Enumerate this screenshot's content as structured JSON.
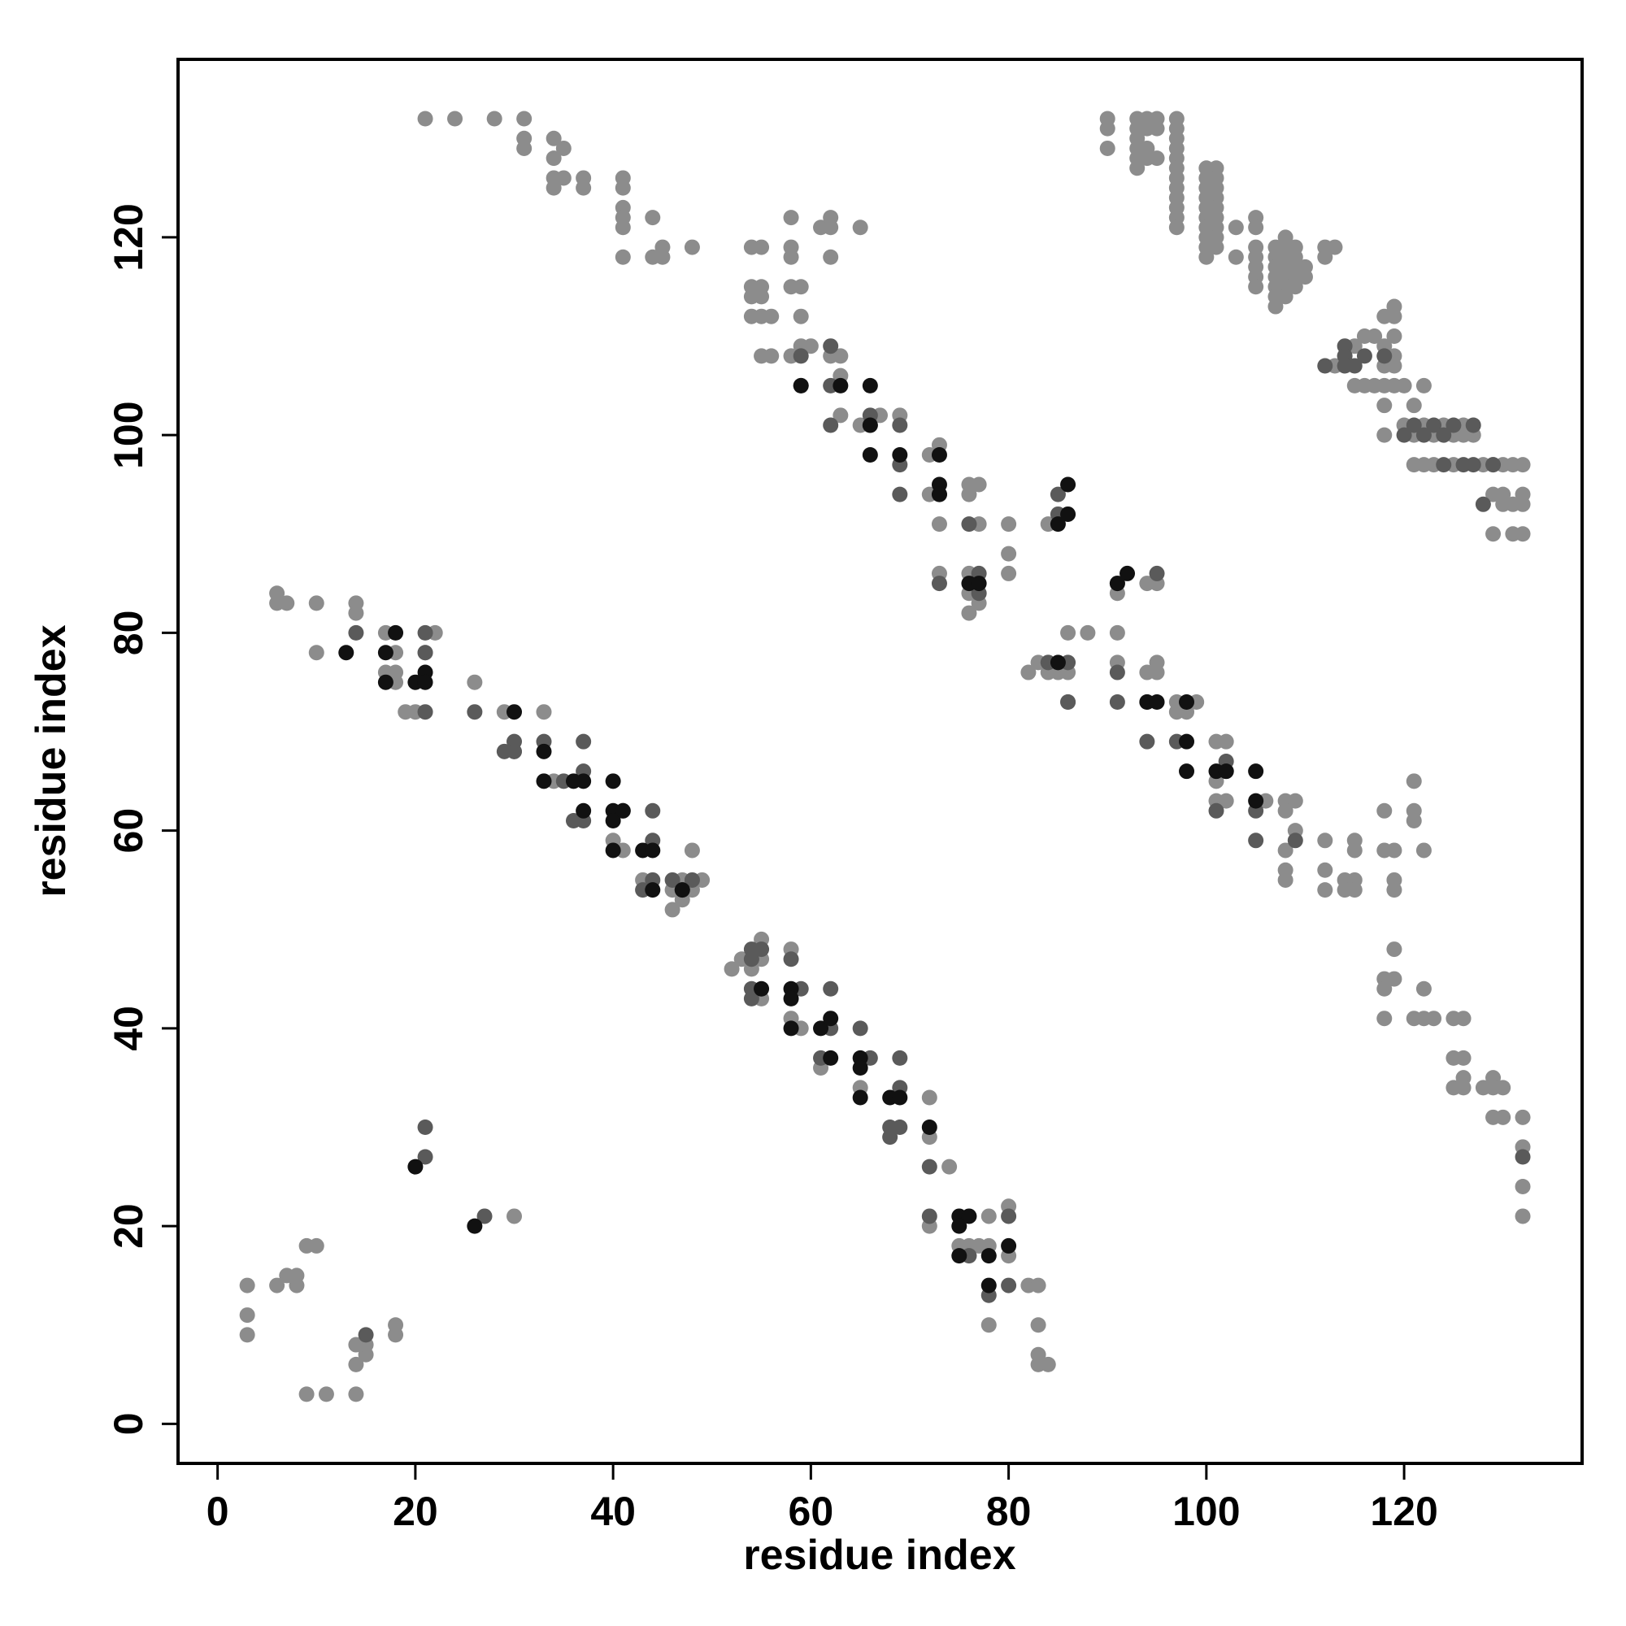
{
  "chart_data": {
    "type": "scatter",
    "xlabel": "residue index",
    "ylabel": "residue index",
    "xlim": [
      -4,
      138
    ],
    "ylim": [
      -4,
      138
    ],
    "xticks": [
      0,
      20,
      40,
      60,
      80,
      100,
      120
    ],
    "yticks": [
      0,
      20,
      40,
      60,
      80,
      100,
      120
    ],
    "series": [
      {
        "color": "#8c8c8c",
        "x": [
          21,
          24,
          28,
          31,
          31,
          31,
          34,
          34,
          35,
          34,
          35,
          37,
          34,
          37,
          41,
          41,
          41,
          41,
          41,
          44,
          41,
          44,
          45,
          45,
          48
        ],
        "values": [
          132,
          132,
          132,
          132,
          130,
          129,
          130,
          128,
          129,
          126,
          126,
          126,
          125,
          125,
          126,
          125,
          123,
          122,
          121,
          122,
          118,
          118,
          119,
          118,
          119
        ]
      },
      {
        "color": "#8c8c8c",
        "x": [
          54,
          55,
          58,
          58,
          58,
          61,
          62,
          62,
          65,
          62,
          54,
          55,
          54,
          55,
          58,
          59,
          54,
          55,
          56,
          59,
          55,
          56,
          58,
          59,
          60,
          62,
          63,
          63,
          63,
          65,
          67,
          69,
          72,
          73,
          72,
          73,
          76,
          77,
          76,
          77,
          80,
          80,
          80,
          73,
          76,
          76,
          77,
          77,
          76,
          84
        ],
        "values": [
          119,
          119,
          122,
          119,
          118,
          121,
          122,
          121,
          121,
          118,
          115,
          115,
          114,
          114,
          115,
          115,
          112,
          112,
          112,
          112,
          108,
          108,
          108,
          109,
          109,
          108,
          108,
          106,
          102,
          101,
          102,
          102,
          98,
          99,
          94,
          91,
          95,
          95,
          94,
          91,
          91,
          88,
          86,
          86,
          86,
          84,
          84,
          83,
          82,
          91
        ]
      },
      {
        "color": "#8c8c8c",
        "x": [
          90,
          90,
          90,
          93,
          93,
          93,
          93,
          93,
          93,
          94,
          94,
          94,
          94,
          95,
          95,
          95,
          97,
          97,
          97,
          97,
          97,
          97,
          97,
          97,
          97,
          97,
          97,
          97
        ],
        "values": [
          132,
          131,
          129,
          132,
          131,
          130,
          129,
          128,
          127,
          132,
          131,
          129,
          128,
          132,
          131,
          128,
          132,
          131,
          130,
          129,
          128,
          127,
          126,
          125,
          124,
          123,
          122,
          121
        ]
      },
      {
        "color": "#8c8c8c",
        "x": [
          100,
          100,
          100,
          100,
          100,
          100,
          100,
          100,
          100,
          100,
          101,
          101,
          101,
          101,
          101,
          101,
          101,
          101,
          101,
          103,
          103
        ],
        "values": [
          127,
          126,
          125,
          124,
          123,
          122,
          121,
          120,
          119,
          118,
          127,
          126,
          125,
          124,
          123,
          122,
          121,
          120,
          119,
          121,
          118
        ]
      },
      {
        "color": "#8c8c8c",
        "x": [
          105,
          105,
          105,
          105,
          105,
          105,
          105,
          107,
          107,
          107,
          107,
          107,
          107,
          107,
          108,
          108,
          108,
          108,
          108,
          108,
          108,
          109,
          109,
          109,
          109,
          109,
          110,
          110,
          112,
          112,
          113,
          113
        ],
        "values": [
          122,
          121,
          119,
          118,
          117,
          116,
          115,
          119,
          118,
          117,
          116,
          115,
          114,
          113,
          120,
          119,
          118,
          117,
          116,
          115,
          114,
          119,
          118,
          117,
          116,
          115,
          117,
          116,
          119,
          118,
          119,
          107
        ]
      },
      {
        "color": "#8c8c8c",
        "x": [
          114,
          115,
          115,
          116,
          116,
          117,
          117,
          118,
          118,
          118,
          118,
          118,
          118,
          119,
          119,
          119,
          119,
          119,
          119,
          120,
          120,
          121,
          121,
          121,
          122,
          122,
          122,
          123,
          123,
          124,
          125,
          125,
          126,
          126,
          127,
          128,
          129,
          129,
          129,
          130,
          130,
          130,
          131,
          131,
          131,
          132,
          132,
          132,
          132
        ],
        "values": [
          108,
          109,
          105,
          110,
          105,
          110,
          105,
          112,
          109,
          107,
          105,
          103,
          100,
          113,
          112,
          110,
          108,
          107,
          105,
          105,
          101,
          103,
          100,
          97,
          105,
          101,
          97,
          100,
          97,
          101,
          100,
          97,
          101,
          100,
          100,
          97,
          97,
          94,
          90,
          97,
          94,
          93,
          97,
          93,
          90,
          97,
          94,
          93,
          90
        ]
      },
      {
        "color": "#8c8c8c",
        "x": [
          82,
          83,
          84,
          84,
          85,
          86,
          86,
          86,
          88,
          91,
          91,
          91,
          94,
          94,
          95,
          95,
          95,
          97,
          97,
          98,
          99,
          101,
          102,
          101,
          101,
          102,
          106,
          108,
          108,
          108,
          108,
          108,
          109,
          109,
          112,
          112,
          112,
          114,
          114,
          115,
          115,
          115,
          115,
          118,
          118,
          119,
          119,
          119,
          121,
          121,
          121,
          122
        ],
        "values": [
          76,
          77,
          77,
          76,
          76,
          80,
          76,
          73,
          80,
          80,
          77,
          84,
          76,
          85,
          77,
          76,
          85,
          73,
          72,
          72,
          73,
          69,
          69,
          65,
          63,
          63,
          63,
          63,
          62,
          58,
          56,
          55,
          60,
          63,
          59,
          56,
          54,
          55,
          54,
          59,
          58,
          55,
          54,
          62,
          58,
          58,
          55,
          54,
          65,
          62,
          61,
          58
        ]
      },
      {
        "color": "#8c8c8c",
        "x": [
          118,
          118,
          118,
          119,
          119,
          121,
          122,
          122,
          123,
          125,
          126,
          125,
          126,
          125,
          126,
          126,
          128,
          129,
          129,
          129,
          130,
          130,
          132,
          132,
          132,
          132
        ],
        "values": [
          45,
          44,
          41,
          48,
          45,
          41,
          44,
          41,
          41,
          41,
          41,
          37,
          37,
          34,
          35,
          34,
          34,
          35,
          34,
          31,
          34,
          31,
          31,
          28,
          24,
          21
        ]
      },
      {
        "color": "#8c8c8c",
        "x": [
          6,
          6,
          7,
          10,
          10,
          14,
          14,
          17,
          18,
          18,
          17,
          18,
          19,
          20,
          22,
          21,
          26,
          29,
          33,
          30,
          34,
          40,
          41,
          43,
          46,
          46,
          47,
          47,
          48,
          49,
          48
        ],
        "values": [
          84,
          83,
          83,
          83,
          78,
          83,
          82,
          80,
          78,
          76,
          76,
          75,
          72,
          72,
          80,
          78,
          75,
          72,
          72,
          68,
          65,
          59,
          58,
          55,
          54,
          52,
          55,
          53,
          58,
          55,
          54
        ]
      },
      {
        "color": "#8c8c8c",
        "x": [
          52,
          53,
          54,
          55,
          55,
          55,
          58,
          58,
          59,
          61,
          65,
          72,
          72,
          74,
          72,
          76,
          75,
          77,
          78,
          78,
          80,
          80,
          78,
          82,
          83,
          83,
          83,
          83,
          84
        ],
        "values": [
          46,
          47,
          46,
          49,
          47,
          43,
          48,
          41,
          40,
          36,
          34,
          33,
          29,
          26,
          20,
          18,
          18,
          18,
          21,
          18,
          22,
          17,
          10,
          14,
          14,
          10,
          7,
          6,
          6
        ]
      },
      {
        "color": "#8c8c8c",
        "x": [
          3,
          3,
          3,
          6,
          7,
          8,
          8,
          9,
          10,
          9,
          11,
          14,
          14,
          14,
          15,
          15,
          18,
          18,
          30
        ],
        "values": [
          14,
          11,
          9,
          14,
          15,
          15,
          14,
          18,
          18,
          3,
          3,
          3,
          8,
          6,
          7,
          8,
          10,
          9,
          21
        ]
      },
      {
        "color": "#5a5a5a",
        "x": [
          14,
          21,
          21,
          21,
          26,
          29,
          30,
          30,
          33,
          35,
          36,
          37,
          37,
          37,
          41,
          44,
          44,
          43,
          44,
          46,
          47,
          48,
          54,
          54,
          55,
          54,
          54,
          58,
          59,
          62,
          62,
          61,
          65,
          66,
          69,
          69,
          68,
          68,
          69,
          72,
          72,
          76,
          80,
          78,
          80,
          15,
          21,
          21,
          27
        ],
        "values": [
          80,
          80,
          78,
          72,
          72,
          68,
          69,
          68,
          69,
          65,
          61,
          69,
          66,
          61,
          62,
          62,
          59,
          54,
          55,
          55,
          54,
          55,
          48,
          47,
          48,
          44,
          43,
          47,
          44,
          44,
          40,
          37,
          40,
          37,
          37,
          34,
          30,
          29,
          30,
          26,
          21,
          17,
          21,
          13,
          14,
          9,
          30,
          27,
          21
        ]
      },
      {
        "color": "#5a5a5a",
        "x": [
          59,
          62,
          59,
          62,
          66,
          69,
          62,
          66,
          69,
          69,
          73,
          76,
          73,
          77,
          77,
          84,
          85,
          85,
          86,
          86,
          91,
          91,
          91,
          95,
          94,
          94,
          97,
          101,
          102,
          102,
          105,
          105,
          109,
          114,
          114,
          114,
          116,
          112,
          115,
          118,
          120,
          121,
          122,
          123,
          124,
          124,
          125,
          126,
          127,
          127,
          129,
          128,
          132
        ],
        "values": [
          108,
          109,
          105,
          105,
          102,
          101,
          101,
          101,
          97,
          94,
          94,
          91,
          85,
          86,
          84,
          77,
          94,
          92,
          77,
          73,
          76,
          73,
          85,
          86,
          73,
          69,
          69,
          62,
          67,
          66,
          59,
          62,
          59,
          109,
          108,
          107,
          108,
          107,
          107,
          108,
          100,
          101,
          100,
          101,
          100,
          97,
          101,
          97,
          101,
          97,
          97,
          93,
          27
        ]
      },
      {
        "color": "#111111",
        "x": [
          13,
          17,
          17,
          20,
          21,
          21,
          30,
          33,
          33,
          36,
          37,
          37,
          40,
          40,
          40,
          41,
          40,
          43,
          44,
          44,
          47,
          55,
          58,
          58,
          58,
          61,
          62,
          62,
          65,
          65,
          65,
          68,
          69,
          72,
          75,
          76,
          75,
          75,
          78,
          78,
          80,
          20,
          26,
          18
        ],
        "values": [
          78,
          78,
          75,
          75,
          76,
          75,
          72,
          68,
          65,
          65,
          65,
          62,
          65,
          62,
          61,
          62,
          58,
          58,
          58,
          54,
          54,
          44,
          44,
          43,
          40,
          40,
          41,
          37,
          37,
          36,
          33,
          33,
          33,
          30,
          21,
          21,
          20,
          17,
          17,
          14,
          18,
          26,
          20,
          80
        ]
      },
      {
        "color": "#111111",
        "x": [
          59,
          63,
          66,
          66,
          66,
          69,
          73,
          73,
          73,
          76,
          77,
          85,
          86,
          86,
          85,
          91,
          92,
          94,
          95,
          98,
          98,
          98,
          101,
          102,
          105,
          105
        ],
        "values": [
          105,
          105,
          105,
          101,
          98,
          98,
          98,
          95,
          94,
          85,
          85,
          91,
          95,
          92,
          77,
          85,
          86,
          73,
          73,
          73,
          69,
          66,
          66,
          66,
          66,
          63
        ]
      }
    ]
  }
}
